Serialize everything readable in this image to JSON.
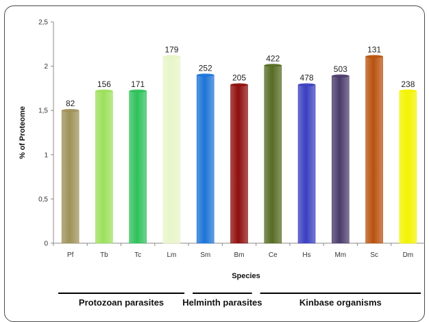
{
  "chart_data": {
    "type": "bar",
    "title": "",
    "xlabel": "Species",
    "ylabel": "% of Proteome",
    "ylim": [
      0,
      2.5
    ],
    "yticks": [
      "0",
      "0,5",
      "1",
      "1,5",
      "2",
      "2,5"
    ],
    "grid": false,
    "categories": [
      "Pf",
      "Tb",
      "Tc",
      "Lm",
      "Sm",
      "Bm",
      "Ce",
      "Hs",
      "Mm",
      "Sc",
      "Dm"
    ],
    "values": [
      1.5,
      1.72,
      1.72,
      2.11,
      1.9,
      1.79,
      2.01,
      1.79,
      1.89,
      2.11,
      1.72
    ],
    "data_labels": [
      "82",
      "156",
      "171",
      "179",
      "252",
      "205",
      "422",
      "478",
      "503",
      "131",
      "238"
    ],
    "colors": [
      "#9e9159",
      "#9ce05c",
      "#2ec15a",
      "#e8f5c8",
      "#1c74d8",
      "#8e0d0d",
      "#566b23",
      "#3a3ec0",
      "#4a3a6a",
      "#b8520e",
      "#f3f300"
    ],
    "groups": [
      {
        "label": "Protozoan parasites",
        "from": 0,
        "to": 3
      },
      {
        "label": "Helminth parasites",
        "from": 4,
        "to": 5
      },
      {
        "label": "Kinbase organisms",
        "from": 6,
        "to": 10
      }
    ]
  }
}
